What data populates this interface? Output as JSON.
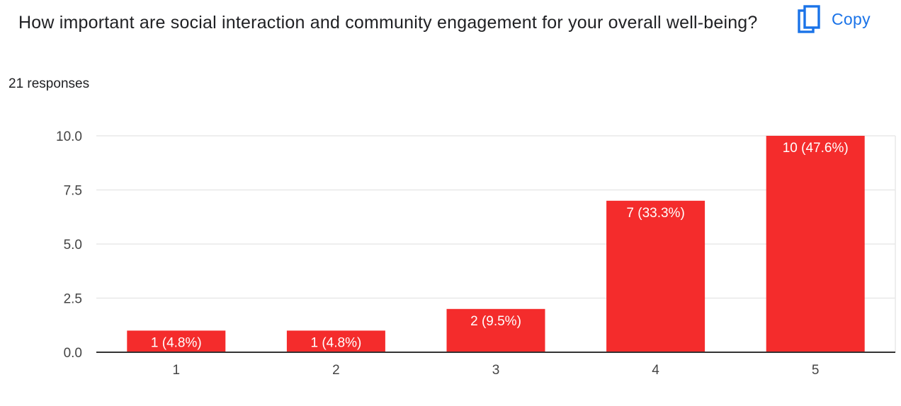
{
  "question": {
    "title": "How important are social interaction and community engagement for your overall well-being?",
    "responses": "21 responses"
  },
  "copy_button": {
    "label": "Copy",
    "icon": "copy-icon"
  },
  "colors": {
    "bar": "#f42c2c",
    "accent": "#1a73e8",
    "grid": "#e8e8e8",
    "baseline": "#333333"
  },
  "chart_data": {
    "type": "bar",
    "categories": [
      "1",
      "2",
      "3",
      "4",
      "5"
    ],
    "values": [
      1,
      1,
      2,
      7,
      10
    ],
    "data_labels": [
      "1 (4.8%)",
      "1 (4.8%)",
      "2 (9.5%)",
      "7 (33.3%)",
      "10 (47.6%)"
    ],
    "y_ticks": [
      "0.0",
      "2.5",
      "5.0",
      "7.5",
      "10.0"
    ],
    "ylim": [
      0,
      10
    ],
    "grid": true,
    "legend": "none",
    "title": "",
    "xlabel": "",
    "ylabel": ""
  }
}
